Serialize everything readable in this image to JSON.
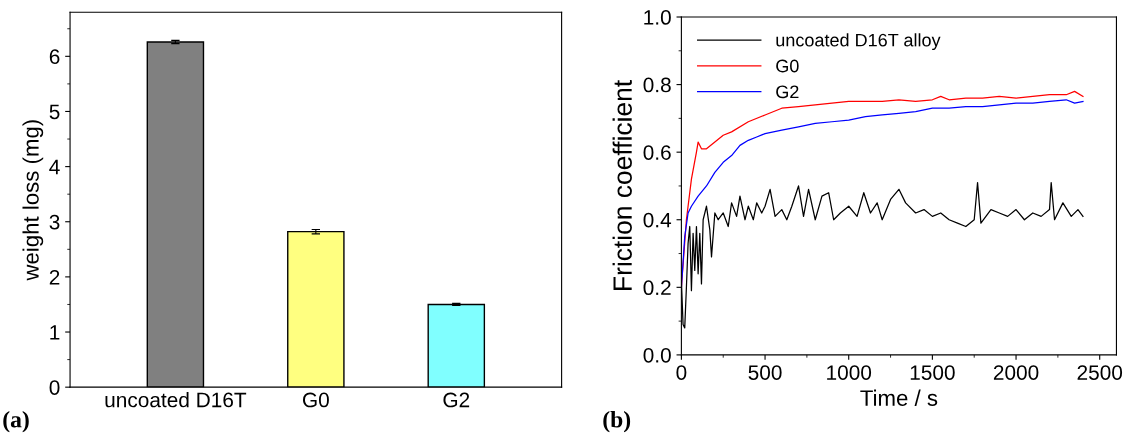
{
  "chart_data": [
    {
      "type": "bar",
      "ylabel": "weight loss (mg)",
      "categories": [
        "uncoated D16T",
        "G0",
        "G2"
      ],
      "values": [
        6.26,
        2.82,
        1.5
      ],
      "errors": [
        0.03,
        0.04,
        0.02
      ],
      "colors": [
        "#808080",
        "#ffff80",
        "#80ffff"
      ],
      "ylim": [
        0,
        6.8
      ],
      "yticks": [
        0,
        1,
        2,
        3,
        4,
        5,
        6
      ],
      "grid": false,
      "annotations": [
        "(a)"
      ]
    },
    {
      "type": "line",
      "xlabel": "Time / s",
      "ylabel": "Friction coefficient",
      "xlim": [
        0,
        2600
      ],
      "xticks": [
        0,
        500,
        1000,
        1500,
        2000,
        2500
      ],
      "ylim": [
        0,
        1.0
      ],
      "yticks": [
        {
          "value": 0,
          "label": "0.0"
        },
        0.2,
        0.4,
        0.6,
        0.8,
        {
          "value": 1.0,
          "label": "1.0"
        }
      ],
      "grid": false,
      "legend": "top left",
      "annotations": [
        "(b)"
      ],
      "series": [
        {
          "name": "uncoated D16T alloy",
          "color": "#000000",
          "x": [
            0,
            10,
            20,
            30,
            40,
            50,
            60,
            70,
            80,
            90,
            100,
            110,
            120,
            130,
            150,
            170,
            180,
            200,
            220,
            250,
            280,
            300,
            330,
            350,
            380,
            400,
            430,
            450,
            480,
            500,
            530,
            560,
            600,
            630,
            660,
            700,
            730,
            760,
            800,
            840,
            880,
            910,
            950,
            1000,
            1050,
            1090,
            1130,
            1170,
            1200,
            1250,
            1300,
            1340,
            1400,
            1450,
            1500,
            1550,
            1600,
            1650,
            1700,
            1750,
            1770,
            1790,
            1850,
            1900,
            1950,
            2000,
            2050,
            2100,
            2150,
            2200,
            2210,
            2230,
            2280,
            2330,
            2370,
            2400
          ],
          "values": [
            0.22,
            0.09,
            0.08,
            0.2,
            0.33,
            0.38,
            0.19,
            0.36,
            0.25,
            0.38,
            0.24,
            0.36,
            0.21,
            0.4,
            0.44,
            0.37,
            0.29,
            0.42,
            0.4,
            0.42,
            0.38,
            0.45,
            0.41,
            0.47,
            0.4,
            0.44,
            0.4,
            0.45,
            0.42,
            0.44,
            0.49,
            0.41,
            0.43,
            0.4,
            0.44,
            0.5,
            0.41,
            0.49,
            0.4,
            0.47,
            0.48,
            0.4,
            0.42,
            0.44,
            0.41,
            0.48,
            0.42,
            0.45,
            0.4,
            0.46,
            0.49,
            0.45,
            0.42,
            0.43,
            0.41,
            0.42,
            0.4,
            0.39,
            0.38,
            0.4,
            0.51,
            0.39,
            0.43,
            0.42,
            0.41,
            0.43,
            0.4,
            0.42,
            0.41,
            0.43,
            0.51,
            0.4,
            0.45,
            0.41,
            0.43,
            0.41
          ]
        },
        {
          "name": "G0",
          "color": "#ff0000",
          "x": [
            0,
            30,
            60,
            90,
            100,
            120,
            150,
            200,
            250,
            300,
            400,
            500,
            600,
            700,
            800,
            900,
            1000,
            1100,
            1200,
            1300,
            1400,
            1500,
            1550,
            1600,
            1700,
            1800,
            1900,
            2000,
            2100,
            2200,
            2300,
            2350,
            2400
          ],
          "values": [
            0.2,
            0.4,
            0.52,
            0.6,
            0.63,
            0.61,
            0.61,
            0.63,
            0.65,
            0.66,
            0.69,
            0.71,
            0.73,
            0.735,
            0.74,
            0.745,
            0.75,
            0.75,
            0.75,
            0.755,
            0.75,
            0.755,
            0.765,
            0.755,
            0.76,
            0.76,
            0.765,
            0.76,
            0.765,
            0.77,
            0.77,
            0.78,
            0.765
          ]
        },
        {
          "name": "G2",
          "color": "#0000ff",
          "x": [
            0,
            20,
            40,
            60,
            100,
            150,
            200,
            250,
            300,
            350,
            400,
            450,
            500,
            600,
            700,
            800,
            900,
            1000,
            1100,
            1200,
            1300,
            1400,
            1500,
            1600,
            1700,
            1800,
            1900,
            2000,
            2100,
            2200,
            2300,
            2350,
            2400
          ],
          "values": [
            0.2,
            0.35,
            0.42,
            0.44,
            0.47,
            0.5,
            0.54,
            0.57,
            0.59,
            0.62,
            0.635,
            0.645,
            0.655,
            0.665,
            0.675,
            0.685,
            0.69,
            0.695,
            0.705,
            0.71,
            0.715,
            0.72,
            0.73,
            0.73,
            0.735,
            0.735,
            0.74,
            0.745,
            0.745,
            0.75,
            0.755,
            0.745,
            0.75
          ]
        }
      ]
    }
  ]
}
